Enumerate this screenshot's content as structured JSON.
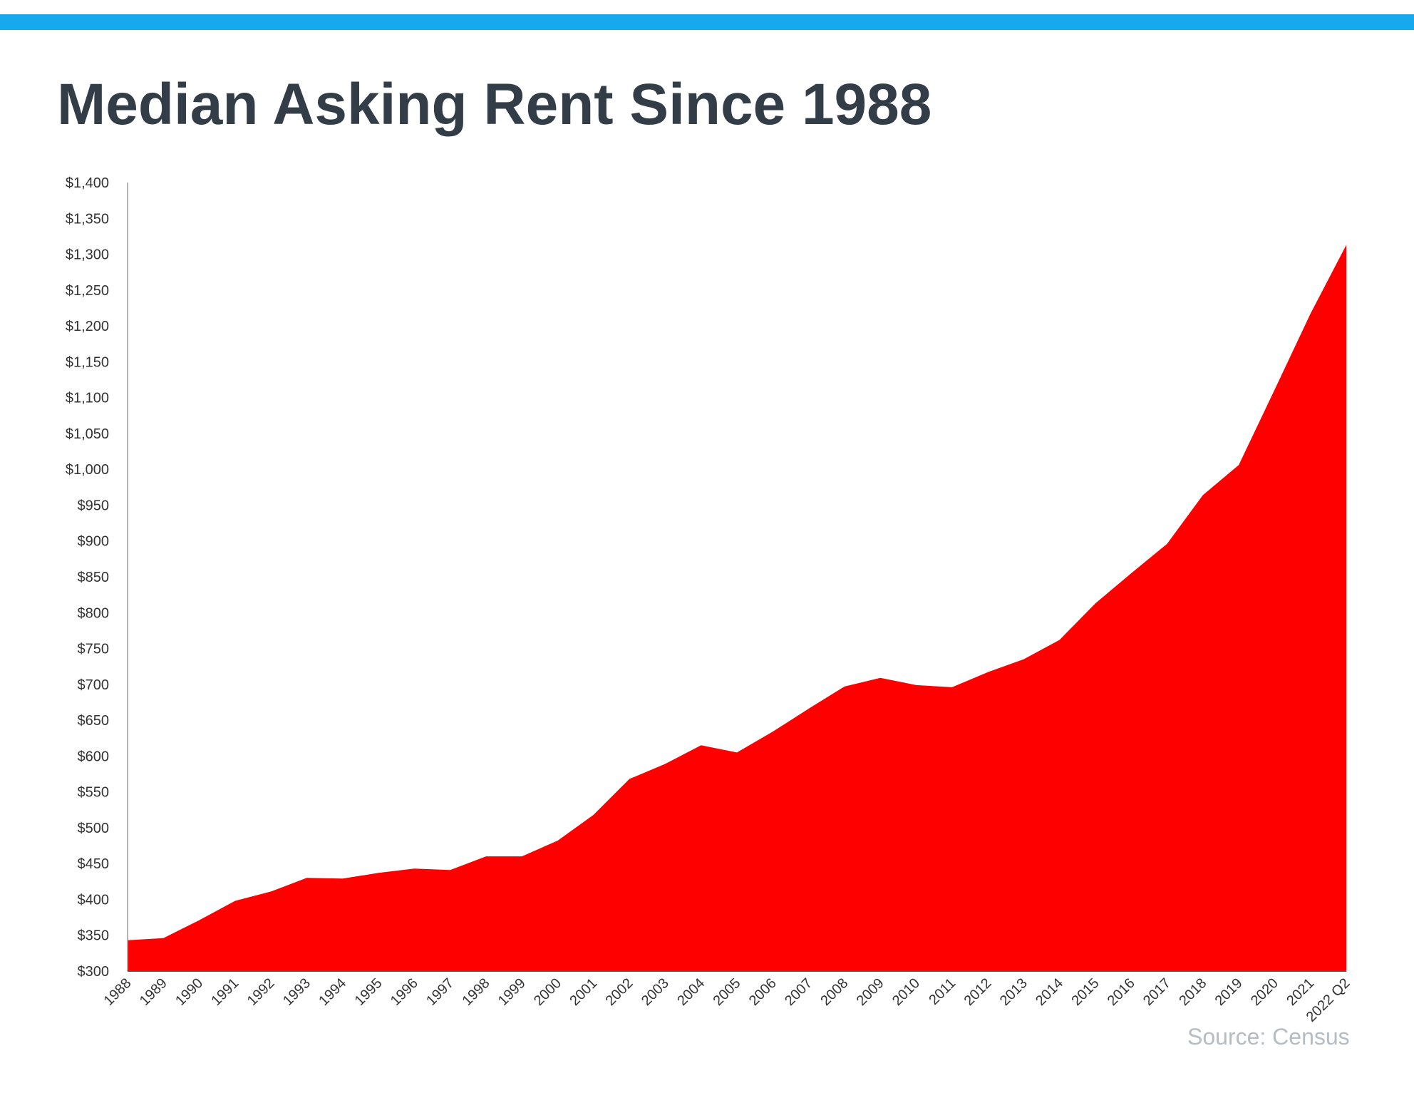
{
  "header": {
    "title": "Median Asking Rent Since 1988"
  },
  "footer": {
    "source": "Source: Census"
  },
  "colors": {
    "accent_bar": "#16a9ee",
    "area_fill": "#ff0000",
    "title": "#333d47",
    "axis_text": "#333333",
    "source_text": "#b4bcc4"
  },
  "chart_data": {
    "type": "area",
    "title": "Median Asking Rent Since 1988",
    "xlabel": "",
    "ylabel": "",
    "ylim": [
      300,
      1400
    ],
    "y_ticks": [
      300,
      350,
      400,
      450,
      500,
      550,
      600,
      650,
      700,
      750,
      800,
      850,
      900,
      950,
      1000,
      1050,
      1100,
      1150,
      1200,
      1250,
      1300,
      1350,
      1400
    ],
    "y_tick_labels": [
      "$300",
      "$350",
      "$400",
      "$450",
      "$500",
      "$550",
      "$600",
      "$650",
      "$700",
      "$750",
      "$800",
      "$850",
      "$900",
      "$950",
      "$1,000",
      "$1,050",
      "$1,100",
      "$1,150",
      "$1,200",
      "$1,250",
      "$1,300",
      "$1,350",
      "$1,400"
    ],
    "grid": false,
    "categories": [
      "1988",
      "1989",
      "1990",
      "1991",
      "1992",
      "1993",
      "1994",
      "1995",
      "1996",
      "1997",
      "1998",
      "1999",
      "2000",
      "2001",
      "2002",
      "2003",
      "2004",
      "2005",
      "2006",
      "2007",
      "2008",
      "2009",
      "2010",
      "2011",
      "2012",
      "2013",
      "2014",
      "2015",
      "2016",
      "2017",
      "2018",
      "2019",
      "2020",
      "2021",
      "2022 Q2"
    ],
    "values": [
      343,
      346,
      371,
      398,
      411,
      430,
      429,
      437,
      443,
      441,
      460,
      460,
      482,
      518,
      568,
      589,
      615,
      605,
      634,
      666,
      697,
      709,
      699,
      696,
      717,
      735,
      762,
      813,
      855,
      896,
      964,
      1006,
      1111,
      1217,
      1313
    ]
  }
}
